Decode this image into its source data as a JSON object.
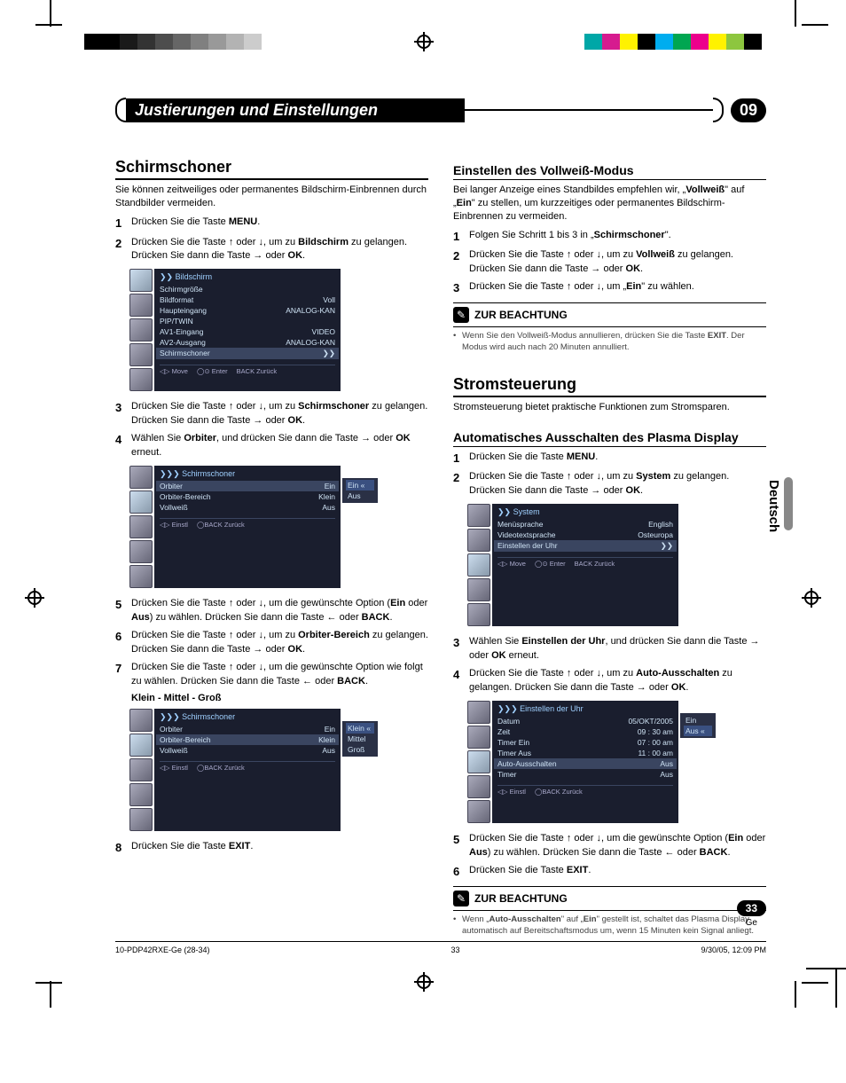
{
  "print_marks": {
    "gray_steps": [
      "#000000",
      "#000000",
      "#1a1a1a",
      "#333333",
      "#4d4d4d",
      "#666666",
      "#808080",
      "#999999",
      "#b3b3b3",
      "#cccccc"
    ],
    "color_bar": [
      "#00a7a7",
      "#d61b8f",
      "#fff200",
      "#000000",
      "#00adef",
      "#00a651",
      "#ec008c",
      "#fff200",
      "#8dc63f",
      "#000000"
    ]
  },
  "header": {
    "title": "Justierungen und Einstellungen",
    "chapter": "09"
  },
  "lang_tab": "Deutsch",
  "page_num": "33",
  "page_num_sub": "Ge",
  "footer": {
    "file": "10-PDP42RXE-Ge (28-34)",
    "page": "33",
    "date": "9/30/05, 12:09 PM"
  },
  "left": {
    "sec1_title": "Schirmschoner",
    "sec1_intro": "Sie können zeitweiliges oder permanentes Bildschirm-Einbrennen durch Standbilder vermeiden.",
    "steps": {
      "s1": "Drücken Sie die Taste <b>MENU</b>.",
      "s2": "Drücken Sie die Taste <span class='arr'>↑</span> oder <span class='arr'>↓</span>, um zu <b>Bildschirm</b> zu gelangen. Drücken Sie dann die Taste <span class='arr'>→</span> oder <b>OK</b>.",
      "s3": "Drücken Sie die Taste <span class='arr'>↑</span> oder <span class='arr'>↓</span>, um zu <b>Schirmschoner</b> zu gelangen. Drücken Sie dann die Taste <span class='arr'>→</span> oder <b>OK</b>.",
      "s4": "Wählen Sie <b>Orbiter</b>, und drücken Sie dann die Taste <span class='arr'>→</span> oder <b>OK</b> erneut.",
      "s5": "Drücken Sie die Taste <span class='arr'>↑</span> oder <span class='arr'>↓</span>, um die gewünschte Option (<b>Ein</b> oder <b>Aus</b>) zu wählen. Drücken Sie dann die Taste <span class='arr'>←</span> oder <b>BACK</b>.",
      "s6": "Drücken Sie die Taste <span class='arr'>↑</span> oder <span class='arr'>↓</span>, um zu <b>Orbiter-Bereich</b> zu gelangen. Drücken Sie dann die Taste <span class='arr'>→</span> oder <b>OK</b>.",
      "s7": "Drücken Sie die Taste <span class='arr'>↑</span> oder <span class='arr'>↓</span>, um die gewünschte Option wie folgt zu wählen. Drücken Sie dann die Taste <span class='arr'>←</span> oder <b>BACK</b>.",
      "s7b": "Klein - Mittel - Groß",
      "s8": "Drücken Sie die Taste <b>EXIT</b>."
    },
    "osd1": {
      "title": "❯❯ Bildschirm",
      "rows": [
        [
          "Schirmgröße",
          ""
        ],
        [
          "Bildformat",
          "Voll"
        ],
        [
          "Haupteingang",
          "ANALOG-KAN"
        ],
        [
          "PIP/TWIN",
          ""
        ],
        [
          "AV1-Eingang",
          "VIDEO"
        ],
        [
          "AV2-Ausgang",
          "ANALOG-KAN"
        ],
        [
          "Schirmschoner",
          "❯❯"
        ]
      ],
      "hl_row": 6,
      "footer": [
        "◁▷ Move",
        "◯⊙ Enter",
        "BACK Zurück"
      ]
    },
    "osd2": {
      "title": "❯❯❯ Schirmschoner",
      "rows": [
        [
          "Orbiter",
          "Ein"
        ],
        [
          "Orbiter-Bereich",
          "Klein"
        ],
        [
          "Vollweiß",
          "Aus"
        ]
      ],
      "hl_row": 0,
      "footer": [
        "◁▷ Einstl",
        "◯BACK Zurück"
      ],
      "popup": [
        "Ein",
        "Aus"
      ],
      "popup_hl": 0
    },
    "osd3": {
      "title": "❯❯❯ Schirmschoner",
      "rows": [
        [
          "Orbiter",
          "Ein"
        ],
        [
          "Orbiter-Bereich",
          "Klein"
        ],
        [
          "Vollweiß",
          "Aus"
        ]
      ],
      "hl_row": 1,
      "footer": [
        "◁▷ Einstl",
        "◯BACK Zurück"
      ],
      "popup": [
        "Klein",
        "Mittel",
        "Groß"
      ],
      "popup_hl": 0
    }
  },
  "right": {
    "sub1_title": "Einstellen des Vollweiß-Modus",
    "sub1_intro": "Bei langer Anzeige eines Standbildes empfehlen wir, „<b>Vollweiß</b>\" auf „<b>Ein</b>\" zu stellen, um kurzzeitiges oder permanentes Bildschirm-Einbrennen zu vermeiden.",
    "sub1_steps": {
      "s1": "Folgen Sie Schritt 1 bis 3 in „<b>Schirmschoner</b>\".",
      "s2": "Drücken Sie die Taste <span class='arr'>↑</span> oder <span class='arr'>↓</span>, um zu <b>Vollweiß</b> zu gelangen. Drücken Sie dann die Taste <span class='arr'>→</span> oder <b>OK</b>.",
      "s3": "Drücken Sie die Taste <span class='arr'>↑</span> oder <span class='arr'>↓</span>, um „<b>Ein</b>\" zu wählen."
    },
    "note1_label": "ZUR BEACHTUNG",
    "note1_text": "Wenn Sie den Vollweiß-Modus annullieren, drücken Sie die Taste <b>EXIT</b>. Der Modus wird auch nach 20 Minuten annulliert.",
    "sec2_title": "Stromsteuerung",
    "sec2_intro": "Stromsteuerung bietet praktische Funktionen zum Stromsparen.",
    "sub2_title": "Automatisches Ausschalten des Plasma Display",
    "sub2_steps": {
      "s1": "Drücken Sie die Taste <b>MENU</b>.",
      "s2": "Drücken Sie die Taste <span class='arr'>↑</span> oder <span class='arr'>↓</span>, um zu <b>System</b> zu gelangen. Drücken Sie dann die Taste <span class='arr'>→</span> oder <b>OK</b>.",
      "s3": "Wählen Sie <b>Einstellen der Uhr</b>, und drücken Sie dann die Taste <span class='arr'>→</span> oder <b>OK</b> erneut.",
      "s4": "Drücken Sie die Taste <span class='arr'>↑</span> oder <span class='arr'>↓</span>, um zu <b>Auto-Ausschalten</b> zu gelangen. Drücken Sie dann die Taste <span class='arr'>→</span> oder <b>OK</b>.",
      "s5": "Drücken Sie die Taste <span class='arr'>↑</span> oder <span class='arr'>↓</span>, um die gewünschte Option (<b>Ein</b> oder <b>Aus</b>) zu wählen. Drücken Sie dann die Taste <span class='arr'>←</span> oder <b>BACK</b>.",
      "s6": "Drücken Sie die Taste <b>EXIT</b>."
    },
    "osd4": {
      "title": "❯❯ System",
      "rows": [
        [
          "Menüsprache",
          "English"
        ],
        [
          "Videotextsprache",
          "Osteuropa"
        ],
        [
          "Einstellen der Uhr",
          "❯❯"
        ]
      ],
      "hl_row": 2,
      "footer": [
        "◁▷ Move",
        "◯⊙ Enter",
        "BACK Zurück"
      ]
    },
    "osd5": {
      "title": "❯❯❯ Einstellen der Uhr",
      "rows": [
        [
          "Datum",
          "05/OKT/2005"
        ],
        [
          "Zeit",
          "09 : 30 am"
        ],
        [
          "Timer Ein",
          "07 : 00 am"
        ],
        [
          "Timer Aus",
          "11 : 00 am"
        ],
        [
          "Auto-Ausschalten",
          "Aus"
        ],
        [
          "Timer",
          "Aus"
        ]
      ],
      "hl_row": 4,
      "footer": [
        "◁▷ Einstl",
        "◯BACK Zurück"
      ],
      "popup": [
        "Ein",
        "Aus"
      ],
      "popup_hl": 1
    },
    "note2_label": "ZUR BEACHTUNG",
    "note2_text": "Wenn „<b>Auto-Ausschalten</b>\" auf „<b>Ein</b>\" gestellt ist, schaltet das Plasma Display automatisch auf Bereitschaftsmodus um, wenn 15 Minuten kein Signal anliegt."
  }
}
